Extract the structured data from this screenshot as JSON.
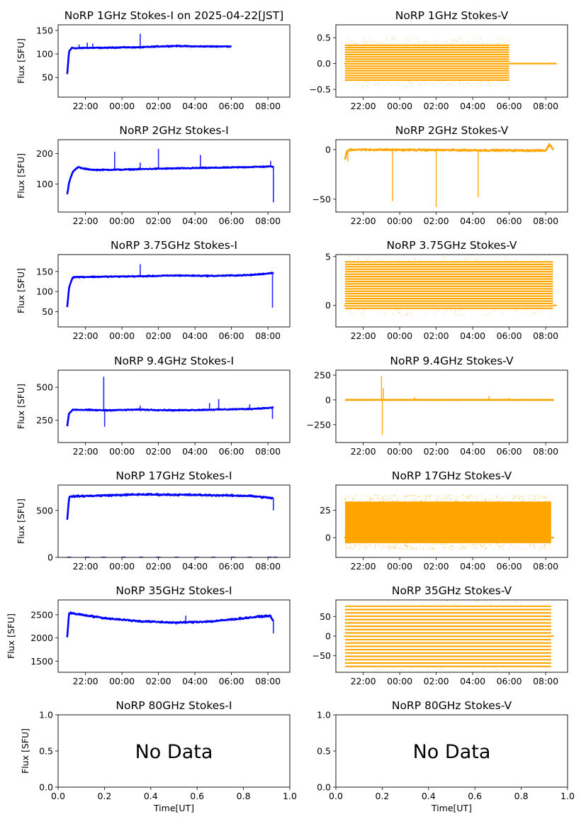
{
  "chart_data": [
    {
      "panel": "1GHz-I",
      "type": "line",
      "title": "NoRP 1GHz Stokes-I on 2025-04-22[JST]",
      "ylabel": "Flux [SFU]",
      "xlabel": "",
      "xticks": [
        "22:00",
        "00:00",
        "02:00",
        "04:00",
        "06:00",
        "08:00"
      ],
      "ylim": [
        8,
        162
      ],
      "yticks": [
        50,
        100,
        150
      ],
      "color": "#0000ff",
      "data_end": 6.0,
      "baseline": [
        [
          21.0,
          57
        ],
        [
          21.1,
          105
        ],
        [
          21.25,
          113
        ],
        [
          21.5,
          112
        ],
        [
          22.0,
          113
        ],
        [
          23.0,
          113
        ],
        [
          0.0,
          114
        ],
        [
          1.0,
          114
        ],
        [
          2.0,
          116
        ],
        [
          3.0,
          117
        ],
        [
          4.0,
          116
        ],
        [
          5.0,
          116
        ],
        [
          6.0,
          116
        ]
      ],
      "noise": 1.5,
      "spikes": [
        [
          21.65,
          120
        ],
        [
          22.1,
          124
        ],
        [
          22.4,
          122
        ],
        [
          1.0,
          143
        ],
        [
          3.2,
          119
        ],
        [
          5.2,
          118
        ]
      ]
    },
    {
      "panel": "1GHz-V",
      "type": "scatter",
      "title": "NoRP 1GHz Stokes-V",
      "ylabel": "",
      "xlabel": "",
      "xticks": [
        "22:00",
        "00:00",
        "02:00",
        "04:00",
        "06:00",
        "08:00"
      ],
      "ylim": [
        -0.65,
        0.75
      ],
      "yticks": [
        0.5,
        0.0,
        -0.5
      ],
      "ytick_labels": [
        "0.5",
        "0.0",
        "−0.5"
      ],
      "color": "#ffa500",
      "data_end": 6.0,
      "flat_to": 8.6,
      "levels_step": 0.045,
      "levels_min": -0.32,
      "levels_max": 0.38
    },
    {
      "panel": "2GHz-I",
      "type": "line",
      "title": "NoRP 2GHz Stokes-I",
      "ylabel": "Flux [SFU]",
      "xlabel": "",
      "xticks": [
        "22:00",
        "00:00",
        "02:00",
        "04:00",
        "06:00",
        "08:00"
      ],
      "ylim": [
        8,
        245
      ],
      "yticks": [
        100,
        200
      ],
      "color": "#0000ff",
      "data_end": 8.3,
      "baseline": [
        [
          21.0,
          65
        ],
        [
          21.1,
          105
        ],
        [
          21.3,
          140
        ],
        [
          21.6,
          155
        ],
        [
          21.9,
          150
        ],
        [
          22.5,
          146
        ],
        [
          0.0,
          147
        ],
        [
          2.0,
          150
        ],
        [
          4.0,
          152
        ],
        [
          6.0,
          154
        ],
        [
          8.0,
          157
        ],
        [
          8.3,
          157
        ]
      ],
      "noise": 2.5,
      "spikes": [
        [
          23.6,
          205
        ],
        [
          1.0,
          170
        ],
        [
          2.0,
          215
        ],
        [
          4.3,
          195
        ],
        [
          8.15,
          175
        ],
        [
          8.3,
          40
        ]
      ]
    },
    {
      "panel": "2GHz-V",
      "type": "line",
      "title": "NoRP 2GHz Stokes-V",
      "ylabel": "",
      "xlabel": "",
      "xticks": [
        "22:00",
        "00:00",
        "02:00",
        "04:00",
        "06:00",
        "08:00"
      ],
      "ylim": [
        -63,
        10
      ],
      "yticks": [
        0,
        -50
      ],
      "ytick_labels": [
        "0",
        "−50"
      ],
      "color": "#ffa500",
      "data_end": 8.45,
      "baseline": [
        [
          21.0,
          -10
        ],
        [
          21.1,
          -2
        ],
        [
          21.3,
          0
        ],
        [
          8.0,
          -1
        ],
        [
          8.2,
          5
        ],
        [
          8.45,
          0
        ]
      ],
      "noise": 1.2,
      "spikes": [
        [
          23.6,
          -52
        ],
        [
          2.0,
          -58
        ],
        [
          4.3,
          -48
        ],
        [
          21.15,
          -12
        ]
      ]
    },
    {
      "panel": "3.75GHz-I",
      "type": "line",
      "title": "NoRP 3.75GHz Stokes-I",
      "ylabel": "Flux [SFU]",
      "xlabel": "",
      "xticks": [
        "22:00",
        "00:00",
        "02:00",
        "04:00",
        "06:00",
        "08:00"
      ],
      "ylim": [
        12,
        192
      ],
      "yticks": [
        50,
        100,
        150
      ],
      "color": "#0000ff",
      "data_end": 8.3,
      "baseline": [
        [
          21.0,
          62
        ],
        [
          21.1,
          110
        ],
        [
          21.3,
          136
        ],
        [
          23.0,
          137
        ],
        [
          1.0,
          138
        ],
        [
          3.0,
          140
        ],
        [
          5.0,
          139
        ],
        [
          7.0,
          141
        ],
        [
          8.0,
          145
        ],
        [
          8.3,
          147
        ]
      ],
      "noise": 2.0,
      "spikes": [
        [
          1.0,
          168
        ],
        [
          8.25,
          60
        ]
      ]
    },
    {
      "panel": "3.75GHz-V",
      "type": "scatter",
      "title": "NoRP 3.75GHz Stokes-V",
      "ylabel": "",
      "xlabel": "",
      "xticks": [
        "22:00",
        "00:00",
        "02:00",
        "04:00",
        "06:00",
        "08:00"
      ],
      "ylim": [
        -2.2,
        5.2
      ],
      "yticks": [
        5,
        0
      ],
      "color": "#ffa500",
      "data_end": 8.4,
      "flat_to": 8.6,
      "levels_step": 0.25,
      "levels_min": -0.3,
      "levels_max": 4.6
    },
    {
      "panel": "9.4GHz-I",
      "type": "line",
      "title": "NoRP 9.4GHz Stokes-I",
      "ylabel": "Flux [SFU]",
      "xlabel": "",
      "xticks": [
        "22:00",
        "00:00",
        "02:00",
        "04:00",
        "06:00",
        "08:00"
      ],
      "ylim": [
        80,
        630
      ],
      "yticks": [
        250,
        500
      ],
      "color": "#0000ff",
      "data_end": 8.3,
      "baseline": [
        [
          21.0,
          205
        ],
        [
          21.1,
          300
        ],
        [
          21.3,
          330
        ],
        [
          23.0,
          325
        ],
        [
          1.0,
          330
        ],
        [
          3.0,
          325
        ],
        [
          5.0,
          330
        ],
        [
          7.0,
          335
        ],
        [
          8.3,
          345
        ]
      ],
      "noise": 6,
      "spikes": [
        [
          23.0,
          580
        ],
        [
          23.05,
          200
        ],
        [
          1.0,
          360
        ],
        [
          4.8,
          380
        ],
        [
          5.3,
          410
        ],
        [
          7.0,
          370
        ],
        [
          8.25,
          260
        ]
      ]
    },
    {
      "panel": "9.4GHz-V",
      "type": "line",
      "title": "NoRP 9.4GHz Stokes-V",
      "ylabel": "",
      "xlabel": "",
      "xticks": [
        "22:00",
        "00:00",
        "02:00",
        "04:00",
        "06:00",
        "08:00"
      ],
      "ylim": [
        -430,
        300
      ],
      "yticks": [
        250,
        0,
        -250
      ],
      "ytick_labels": [
        "250",
        "0",
        "−250"
      ],
      "color": "#ffa500",
      "data_end": 8.45,
      "baseline": [
        [
          21.0,
          0
        ],
        [
          8.45,
          0
        ]
      ],
      "noise": 3,
      "spikes": [
        [
          23.0,
          240
        ],
        [
          23.05,
          -350
        ],
        [
          23.1,
          120
        ],
        [
          0.8,
          30
        ],
        [
          4.9,
          40
        ],
        [
          6.0,
          20
        ]
      ]
    },
    {
      "panel": "17GHz-I",
      "type": "line",
      "title": "NoRP 17GHz Stokes-I",
      "ylabel": "Flux [SFU]",
      "xlabel": "",
      "xticks": [
        "22:00",
        "00:00",
        "02:00",
        "04:00",
        "06:00",
        "08:00"
      ],
      "ylim": [
        0,
        770
      ],
      "yticks": [
        0,
        500
      ],
      "color": "#0000ff",
      "data_end": 8.3,
      "baseline": [
        [
          21.0,
          400
        ],
        [
          21.1,
          640
        ],
        [
          21.3,
          650
        ],
        [
          1.0,
          670
        ],
        [
          4.0,
          665
        ],
        [
          7.0,
          655
        ],
        [
          8.3,
          630
        ]
      ],
      "noise": 12,
      "spikes": [
        [
          8.3,
          500
        ]
      ],
      "zero_marks": [
        21.1,
        22.1,
        23.0,
        0.1,
        1.05,
        2.0,
        3.0,
        4.1,
        5.0,
        6.1,
        7.0,
        8.1,
        8.4
      ]
    },
    {
      "panel": "17GHz-V",
      "type": "scatter",
      "title": "NoRP 17GHz Stokes-V",
      "ylabel": "",
      "xlabel": "",
      "xticks": [
        "22:00",
        "00:00",
        "02:00",
        "04:00",
        "06:00",
        "08:00"
      ],
      "ylim": [
        -18,
        48
      ],
      "yticks": [
        25,
        0
      ],
      "color": "#ffa500",
      "data_end": 8.3,
      "flat_to": 8.45,
      "band_min": -5,
      "band_max": 33,
      "band_noise": 6
    },
    {
      "panel": "35GHz-I",
      "type": "line",
      "title": "NoRP 35GHz Stokes-I",
      "ylabel": "Flux [SFU]",
      "xlabel": "",
      "xticks": [
        "22:00",
        "00:00",
        "02:00",
        "04:00",
        "06:00",
        "08:00"
      ],
      "ylim": [
        1260,
        2820
      ],
      "yticks": [
        1500,
        2000,
        2500
      ],
      "color": "#0000ff",
      "data_end": 8.3,
      "baseline": [
        [
          21.0,
          2010
        ],
        [
          21.1,
          2540
        ],
        [
          21.5,
          2520
        ],
        [
          23.0,
          2430
        ],
        [
          1.0,
          2360
        ],
        [
          3.0,
          2330
        ],
        [
          5.0,
          2360
        ],
        [
          7.0,
          2440
        ],
        [
          8.1,
          2480
        ],
        [
          8.3,
          2380
        ]
      ],
      "noise": 25,
      "spikes": [
        [
          8.3,
          2100
        ],
        [
          3.5,
          2480
        ]
      ]
    },
    {
      "panel": "35GHz-V",
      "type": "scatter",
      "title": "NoRP 35GHz Stokes-V",
      "ylabel": "",
      "xlabel": "",
      "xticks": [
        "22:00",
        "00:00",
        "02:00",
        "04:00",
        "06:00",
        "08:00"
      ],
      "ylim": [
        -92,
        92
      ],
      "yticks": [
        50,
        0,
        -50
      ],
      "ytick_labels": [
        "50",
        "0",
        "−50"
      ],
      "color": "#ffa500",
      "data_end": 8.3,
      "flat_to": 8.45,
      "levels_step": 8.5,
      "levels_min": -77,
      "levels_max": 80
    },
    {
      "panel": "80GHz-I",
      "type": "empty",
      "title": "NoRP 80GHz Stokes-I",
      "ylabel": "Flux [SFU]",
      "xlabel": "Time[UT]",
      "annotation": "No Data",
      "xlim": [
        0,
        1
      ],
      "ylim": [
        0,
        1
      ],
      "xticks": [
        "0.0",
        "0.2",
        "0.4",
        "0.6",
        "0.8",
        "1.0"
      ],
      "yticks": [
        "0.0",
        "0.5",
        "1.0"
      ]
    },
    {
      "panel": "80GHz-V",
      "type": "empty",
      "title": "NoRP 80GHz Stokes-V",
      "ylabel": "",
      "xlabel": "Time[UT]",
      "annotation": "No Data",
      "xlim": [
        0,
        1
      ],
      "ylim": [
        0,
        1
      ],
      "xticks": [
        "0.0",
        "0.2",
        "0.4",
        "0.6",
        "0.8",
        "1.0"
      ],
      "yticks": [
        "0.0",
        "0.5",
        "1.0"
      ]
    }
  ]
}
